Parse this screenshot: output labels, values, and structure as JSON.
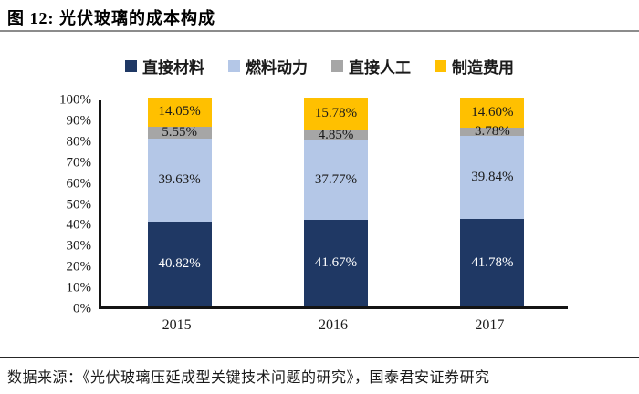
{
  "header": {
    "title": "图 12:  光伏玻璃的成本构成"
  },
  "chart_data": {
    "type": "bar",
    "stacked": true,
    "title": "光伏玻璃的成本构成",
    "categories": [
      "2015",
      "2016",
      "2017"
    ],
    "series": [
      {
        "name": "直接材料",
        "color": "#1F3864",
        "label_color": "#ffffff",
        "values": [
          40.82,
          41.67,
          41.78
        ],
        "labels": [
          "40.82%",
          "41.67%",
          "41.78%"
        ]
      },
      {
        "name": "燃料动力",
        "color": "#B4C7E7",
        "label_color": "#1a1a1a",
        "values": [
          39.63,
          37.77,
          39.84
        ],
        "labels": [
          "39.63%",
          "37.77%",
          "39.84%"
        ]
      },
      {
        "name": "直接人工",
        "color": "#A6A6A6",
        "label_color": "#1a1a1a",
        "values": [
          5.55,
          4.85,
          3.78
        ],
        "labels": [
          "5.55%",
          "4.85%",
          "3.78%"
        ]
      },
      {
        "name": "制造费用",
        "color": "#FFC000",
        "label_color": "#1a1a1a",
        "values": [
          14.05,
          15.78,
          14.6
        ],
        "labels": [
          "14.05%",
          "15.78%",
          "14.60%"
        ]
      }
    ],
    "y_ticks": [
      "100%",
      "90%",
      "80%",
      "70%",
      "60%",
      "50%",
      "40%",
      "30%",
      "20%",
      "10%",
      "0%"
    ],
    "ylim": [
      0,
      100
    ],
    "grid": false,
    "legend_position": "top",
    "xlabel": "",
    "ylabel": ""
  },
  "footer": {
    "source": "数据来源：《光伏玻璃压延成型关键技术问题的研究》，国泰君安证券研究"
  }
}
